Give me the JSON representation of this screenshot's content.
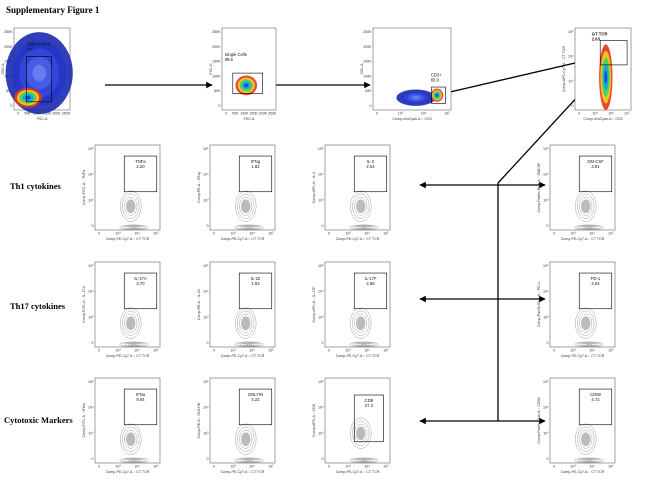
{
  "title": "Supplementary Figure 1",
  "ticks": {
    "log": [
      "10⁵",
      "10⁴",
      "10³",
      "0"
    ],
    "linear": [
      "250K",
      "200K",
      "150K",
      "100K",
      "50K",
      "0"
    ]
  },
  "gating": [
    {
      "y_label": "SSC-A",
      "x_label": "FSC-A",
      "gate": "Splenocytes",
      "percent": "44.7"
    },
    {
      "y_label": "FSC-H",
      "x_label": "FSC-A",
      "gate": "Single Cells",
      "percent": "99.6"
    },
    {
      "y_label": "SSC-A",
      "x_label": "Comp-AmCyan-A :: CD3",
      "gate": "CD3+",
      "percent": "65.9"
    },
    {
      "y_label": "Comp-APC-Cy7-A :: CT TCR",
      "x_label": "Comp-AmCyan-A :: CD3",
      "gate": "GT TCR",
      "percent": "2.63"
    }
  ],
  "grid_x_label": "Comp-PE-Cy7-A :: CT TCR",
  "rows": [
    {
      "label": "Th1 cytokines",
      "plots": [
        {
          "y_label": "Comp-FITC-A :: TNFa",
          "gate": "TNFa",
          "percent": "2.20"
        },
        {
          "y_label": "Comp-PE-A :: IFNg",
          "gate": "IFNg",
          "percent": "1.82"
        },
        {
          "y_label": "Comp-APC-A :: IL-2",
          "gate": "IL-2",
          "percent": "2.54"
        },
        {
          "y_label": "Comp-Pacific Blue-A :: GMCSF",
          "gate": "GM-CSF",
          "percent": "3.91"
        }
      ]
    },
    {
      "label": "Th17 cytokines",
      "plots": [
        {
          "y_label": "Comp-FITC-A :: IL-17A",
          "gate": "IL-17A",
          "percent": "3.70"
        },
        {
          "y_label": "Comp-PE-A :: IL-22",
          "gate": "IL-22",
          "percent": "1.93"
        },
        {
          "y_label": "Comp-APC-A :: IL-17F",
          "gate": "IL-17F",
          "percent": "2.56"
        },
        {
          "y_label": "Comp-Pacific Blue-A :: PD-1",
          "gate": "PD-1",
          "percent": "2.04"
        }
      ]
    },
    {
      "label": "Cytotoxic Markers",
      "plots": [
        {
          "y_label": "Comp-FITC-A :: IFNa",
          "gate": "IFNa",
          "percent": "9.64"
        },
        {
          "y_label": "Comp-PE-A :: GNLYIN",
          "gate": "GNLYIN",
          "percent": "4.22"
        },
        {
          "y_label": "Comp-APC-A :: CD8",
          "gate": "CD8",
          "percent": "27.3"
        },
        {
          "y_label": "Comp-Pacific Blue-A :: CD69",
          "gate": "CD69",
          "percent": "4.72"
        }
      ]
    }
  ]
}
